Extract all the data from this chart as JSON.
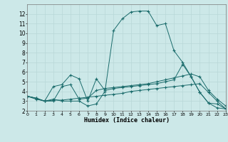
{
  "xlabel": "Humidex (Indice chaleur)",
  "bg_color": "#cce8e8",
  "grid_color": "#b8d8d8",
  "line_color": "#1a6b6b",
  "xlim": [
    0,
    23
  ],
  "ylim": [
    2,
    13
  ],
  "xticks": [
    0,
    1,
    2,
    3,
    4,
    5,
    6,
    7,
    8,
    9,
    10,
    11,
    12,
    13,
    14,
    15,
    16,
    17,
    18,
    19,
    20,
    21,
    22,
    23
  ],
  "yticks": [
    2,
    3,
    4,
    5,
    6,
    7,
    8,
    9,
    10,
    11,
    12
  ],
  "lines": [
    {
      "x": [
        0,
        1,
        2,
        3,
        4,
        5,
        6,
        7,
        8,
        9,
        10,
        11,
        12,
        13,
        14,
        15,
        16,
        17,
        18,
        19,
        20,
        21,
        22,
        23
      ],
      "y": [
        3.5,
        3.2,
        3.0,
        3.2,
        3.0,
        3.0,
        3.0,
        2.5,
        2.7,
        4.0,
        10.3,
        11.5,
        12.2,
        12.3,
        12.3,
        10.8,
        11.0,
        8.2,
        7.0,
        5.5,
        3.9,
        2.8,
        2.3,
        2.2
      ]
    },
    {
      "x": [
        0,
        1,
        2,
        3,
        4,
        5,
        6,
        7,
        8,
        9,
        10,
        11,
        12,
        13,
        14,
        15,
        16,
        17,
        18,
        19,
        20,
        21,
        22,
        23
      ],
      "y": [
        3.5,
        3.3,
        3.0,
        4.5,
        4.7,
        5.7,
        5.3,
        3.0,
        5.3,
        4.1,
        4.3,
        4.4,
        4.5,
        4.6,
        4.7,
        4.8,
        5.0,
        5.2,
        6.8,
        5.5,
        3.9,
        2.8,
        2.7,
        2.2
      ]
    },
    {
      "x": [
        0,
        1,
        2,
        3,
        4,
        5,
        6,
        7,
        8,
        9,
        10,
        11,
        12,
        13,
        14,
        15,
        16,
        17,
        18,
        19,
        20,
        21,
        22,
        23
      ],
      "y": [
        3.5,
        3.3,
        3.0,
        3.0,
        4.5,
        4.7,
        3.2,
        3.3,
        4.1,
        4.3,
        4.4,
        4.5,
        4.6,
        4.7,
        4.8,
        5.0,
        5.2,
        5.4,
        5.6,
        5.8,
        5.5,
        4.1,
        3.2,
        2.5
      ]
    },
    {
      "x": [
        0,
        1,
        2,
        3,
        4,
        5,
        6,
        7,
        8,
        9,
        10,
        11,
        12,
        13,
        14,
        15,
        16,
        17,
        18,
        19,
        20,
        21,
        22,
        23
      ],
      "y": [
        3.5,
        3.3,
        3.0,
        3.1,
        3.1,
        3.2,
        3.3,
        3.4,
        3.5,
        3.6,
        3.7,
        3.8,
        4.0,
        4.1,
        4.2,
        4.3,
        4.4,
        4.5,
        4.6,
        4.7,
        4.8,
        3.9,
        3.0,
        2.2
      ]
    }
  ]
}
